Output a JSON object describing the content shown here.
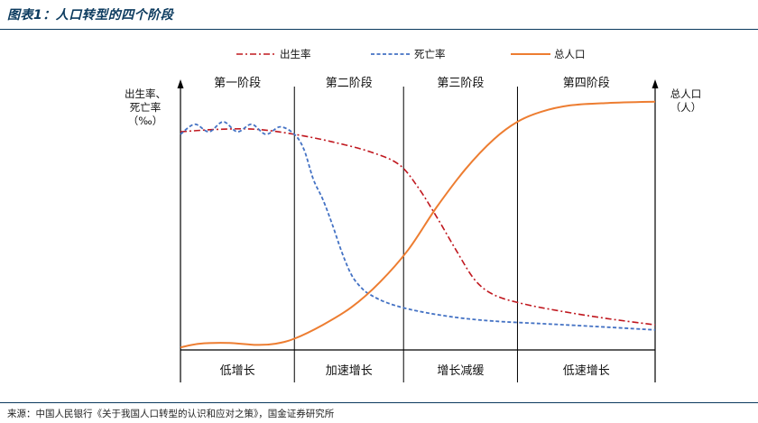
{
  "header": {
    "title": "图表1：人口转型的四个阶段"
  },
  "footer": {
    "source": "来源：中国人民银行《关于我国人口转型的认识和应对之策》，国金证券研究所"
  },
  "colors": {
    "birth": "#c0181f",
    "death": "#4472c4",
    "population": "#ed7d31",
    "title": "#0b3a5e"
  },
  "chart_data": {
    "type": "line",
    "title": "人口转型的四个阶段",
    "legend": {
      "placement": "top",
      "entries": [
        "出生率",
        "死亡率",
        "总人口"
      ]
    },
    "left_axis_label": [
      "出生率、",
      "死亡率",
      "（‰）"
    ],
    "right_axis_label": [
      "总人口",
      "（人）"
    ],
    "stages": [
      {
        "name": "第一阶段",
        "feature": "低增长"
      },
      {
        "name": "第二阶段",
        "feature": "加速增长"
      },
      {
        "name": "第三阶段",
        "feature": "增长减缓"
      },
      {
        "name": "第四阶段",
        "feature": "低速增长"
      }
    ],
    "x_range": [
      0,
      100
    ],
    "y_range": [
      0,
      100
    ],
    "stage_boundaries": [
      24,
      47,
      71
    ],
    "series": [
      {
        "name": "出生率",
        "style": "dash-dot",
        "points": [
          [
            0,
            87
          ],
          [
            8,
            88
          ],
          [
            16,
            88
          ],
          [
            24,
            86
          ],
          [
            32,
            83
          ],
          [
            40,
            79
          ],
          [
            46,
            74
          ],
          [
            50,
            65
          ],
          [
            54,
            53
          ],
          [
            58,
            40
          ],
          [
            62,
            28
          ],
          [
            66,
            22
          ],
          [
            72,
            18.5
          ],
          [
            80,
            15.5
          ],
          [
            90,
            12.5
          ],
          [
            100,
            10
          ]
        ]
      },
      {
        "name": "死亡率",
        "style": "dash",
        "points": [
          [
            0,
            86
          ],
          [
            3,
            90
          ],
          [
            6,
            87
          ],
          [
            9,
            91
          ],
          [
            12,
            87
          ],
          [
            15,
            90
          ],
          [
            18,
            86
          ],
          [
            21,
            89
          ],
          [
            24,
            86
          ],
          [
            26,
            80
          ],
          [
            28,
            68
          ],
          [
            30,
            60
          ],
          [
            32,
            50
          ],
          [
            34,
            39
          ],
          [
            36,
            30
          ],
          [
            38,
            25
          ],
          [
            40,
            22
          ],
          [
            44,
            18.5
          ],
          [
            50,
            15.5
          ],
          [
            58,
            13
          ],
          [
            66,
            11.5
          ],
          [
            76,
            10.5
          ],
          [
            86,
            9.5
          ],
          [
            100,
            8
          ]
        ]
      },
      {
        "name": "总人口",
        "style": "solid",
        "points": [
          [
            0,
            1
          ],
          [
            4,
            2.5
          ],
          [
            10,
            2.8
          ],
          [
            16,
            2
          ],
          [
            20,
            2.5
          ],
          [
            24,
            4.5
          ],
          [
            30,
            10
          ],
          [
            36,
            17
          ],
          [
            42,
            27
          ],
          [
            48,
            40
          ],
          [
            54,
            57
          ],
          [
            60,
            72
          ],
          [
            66,
            84
          ],
          [
            71,
            91
          ],
          [
            76,
            95
          ],
          [
            82,
            97.5
          ],
          [
            90,
            98.5
          ],
          [
            100,
            99
          ]
        ]
      }
    ]
  }
}
